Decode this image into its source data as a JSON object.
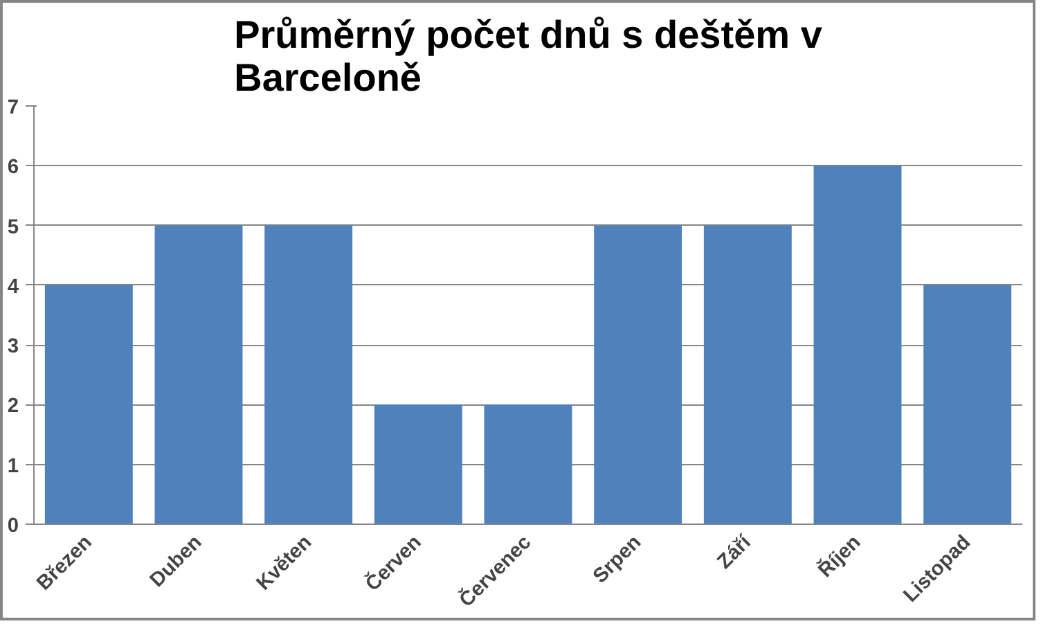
{
  "chart_data": {
    "type": "bar",
    "title": "Průměrný počet dnů s deštěm v Barceloně",
    "categories": [
      "Březen",
      "Duben",
      "Květen",
      "Červen",
      "Červenec",
      "Srpen",
      "Září",
      "Říjen",
      "Listopad"
    ],
    "values": [
      4,
      5,
      5,
      2,
      2,
      5,
      5,
      6,
      4
    ],
    "color": "#4f81bd",
    "ylim": [
      0,
      7
    ],
    "yticks": [
      0,
      1,
      2,
      3,
      4,
      5,
      6,
      7
    ],
    "grid": "y"
  }
}
